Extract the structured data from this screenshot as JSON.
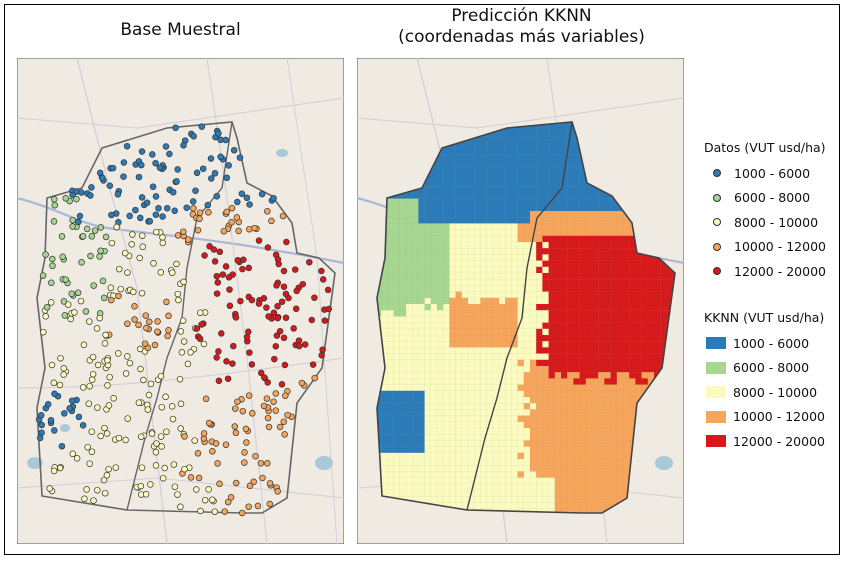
{
  "left_panel": {
    "title": "Base Muestral"
  },
  "right_panel": {
    "title_line1": "Predicción KKNN",
    "title_line2": "(coordenadas más variables)"
  },
  "legend_points": {
    "title": "Datos (VUT usd/ha)",
    "items": [
      {
        "label": "1000 - 6000",
        "color": "#2b7bb9"
      },
      {
        "label": "6000 - 8000",
        "color": "#a6d790"
      },
      {
        "label": "8000 - 10000",
        "color": "#fbfbc0"
      },
      {
        "label": "10000 - 12000",
        "color": "#f6a55b"
      },
      {
        "label": "12000 - 20000",
        "color": "#d7191c"
      }
    ]
  },
  "legend_kknn": {
    "title": "KKNN (VUT usd/ha)",
    "items": [
      {
        "label": "1000 - 6000",
        "color": "#2b7bb9"
      },
      {
        "label": "6000 - 8000",
        "color": "#a6d790"
      },
      {
        "label": "8000 - 10000",
        "color": "#fbfbc0"
      },
      {
        "label": "10000 - 12000",
        "color": "#f6a55b"
      },
      {
        "label": "12000 - 20000",
        "color": "#d7191c"
      }
    ]
  },
  "colors": {
    "basemap": "#efeae2",
    "boundary": "#555555",
    "road": "#c9c2cf",
    "highway": "#a9b8d8",
    "water": "#aac9d8"
  }
}
